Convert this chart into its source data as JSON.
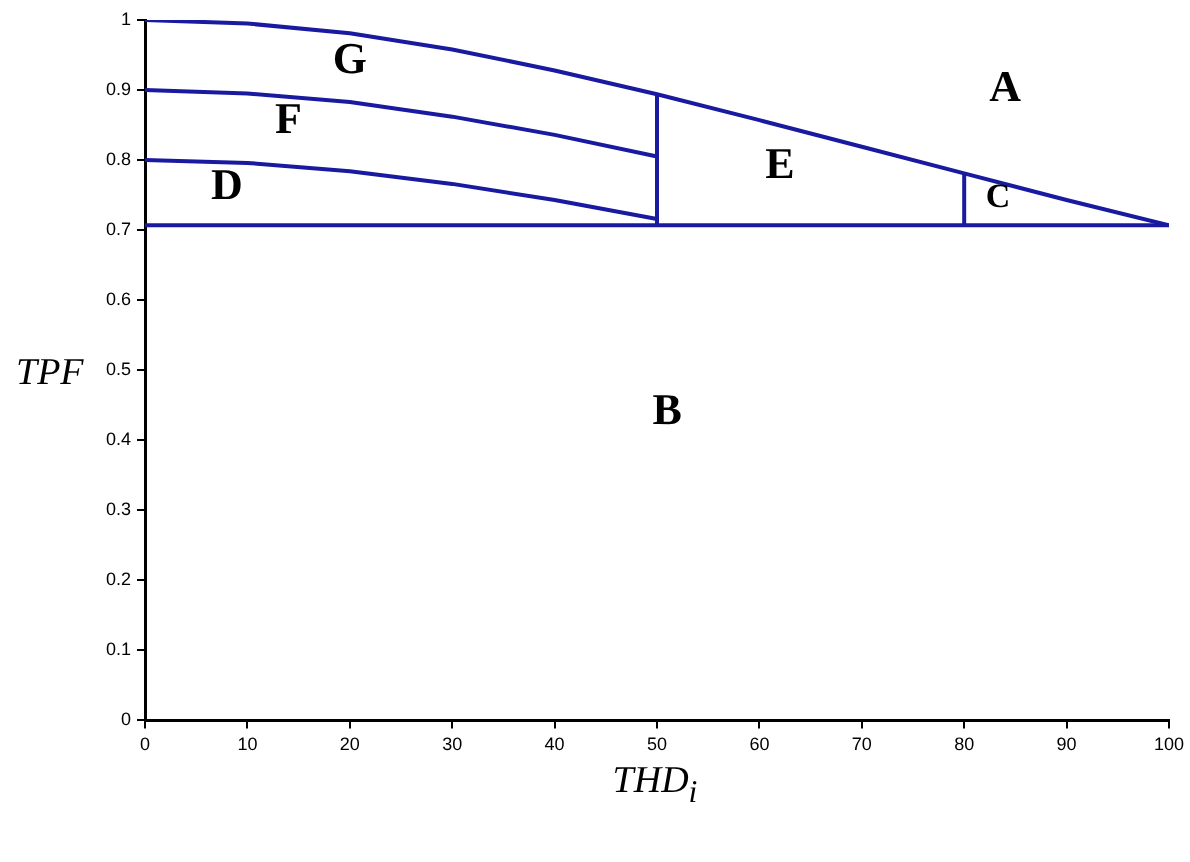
{
  "chart_data": {
    "type": "line",
    "xlabel": "THD$_{i}$",
    "ylabel": "TPF",
    "xlim": [
      0,
      100
    ],
    "xticks": [
      0,
      10,
      20,
      30,
      40,
      50,
      60,
      70,
      80,
      90,
      100
    ],
    "ylim": [
      0,
      1
    ],
    "yticks": [
      0,
      0.1,
      0.2,
      0.3,
      0.4,
      0.5,
      0.6,
      0.7,
      0.8,
      0.9,
      1
    ],
    "grid": false,
    "legend": false,
    "marker": "none",
    "line_style": "solid",
    "series": [
      {
        "color": "#1a1aa0",
        "x": [
          0,
          10,
          20,
          30,
          40,
          50,
          60,
          70,
          80,
          90,
          100
        ],
        "values": [
          1,
          0.995,
          0.981,
          0.958,
          0.928,
          0.894,
          0.857,
          0.819,
          0.781,
          0.743,
          0.707
        ]
      },
      {
        "color": "#1a1aa0",
        "x": [
          0,
          10,
          20,
          30,
          40,
          50
        ],
        "values": [
          0.9,
          0.895,
          0.883,
          0.862,
          0.836,
          0.805
        ]
      },
      {
        "color": "#1a1aa0",
        "x": [
          0,
          10,
          20,
          30,
          40,
          50
        ],
        "values": [
          0.8,
          0.796,
          0.784,
          0.766,
          0.743,
          0.716
        ]
      },
      {
        "color": "#1a1aa0",
        "x": [
          0,
          100
        ],
        "values": [
          0.707,
          0.707
        ]
      },
      {
        "color": "#1a1aa0",
        "x": [
          50,
          50
        ],
        "values": [
          0.707,
          0.894
        ]
      },
      {
        "color": "#1a1aa0",
        "x": [
          80,
          80
        ],
        "values": [
          0.707,
          0.781
        ]
      }
    ],
    "annotations": [
      "A",
      "B",
      "C",
      "D",
      "E",
      "F",
      "G"
    ]
  }
}
